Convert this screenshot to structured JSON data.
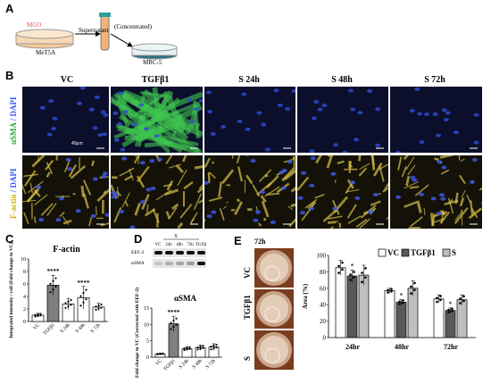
{
  "panels": {
    "A": "A",
    "B": "B",
    "C": "C",
    "D": "D",
    "E": "E"
  },
  "schematic": {
    "mgo": "MGO",
    "met5a": "MeT5A",
    "supernatant": "Supernatant",
    "concentrated": "(Concentrated)",
    "mrc5": "MRC-5"
  },
  "micro": {
    "columns": [
      "VC",
      "TGFβ1",
      "S 24h",
      "S 48h",
      "S 72h"
    ],
    "row_labels": [
      {
        "a": "αSMA",
        "b": " / DAPI"
      },
      {
        "a": "F-actin",
        "b": " / DAPI"
      }
    ],
    "scale": "40μm"
  },
  "chart_data": [
    {
      "panel": "C",
      "type": "bar",
      "title": "F-actin",
      "ylabel": "Integrated intensity / cell (Fold change to VC)",
      "categories": [
        "VC",
        "TGFβ1",
        "S 24h",
        "S 48h",
        "S 72h"
      ],
      "values": [
        1.0,
        5.8,
        2.8,
        3.8,
        2.3
      ],
      "errors": [
        0.3,
        1.6,
        0.9,
        1.8,
        0.6
      ],
      "significance": [
        "",
        "****",
        "",
        "****",
        ""
      ],
      "ylim": [
        0,
        10
      ],
      "yticks": [
        0,
        2,
        4,
        6,
        8,
        10
      ],
      "colors": [
        "#ffffff",
        "#7f7f7f",
        "#ffffff",
        "#ffffff",
        "#ffffff"
      ]
    },
    {
      "panel": "D",
      "type": "bar",
      "title": "αSMA",
      "ylabel": "Fold change to VC (Corrected with EEF-2)",
      "categories": [
        "VC",
        "TGFβ1",
        "S 24h",
        "S 48h",
        "S 72h"
      ],
      "values": [
        1.0,
        10.2,
        2.6,
        2.9,
        3.1
      ],
      "errors": [
        0.2,
        2.3,
        0.6,
        0.8,
        1.0
      ],
      "significance": [
        "",
        "****",
        "",
        "",
        ""
      ],
      "ylim": [
        0,
        15
      ],
      "yticks": [
        0,
        5,
        10,
        15
      ],
      "blot": {
        "group": "S",
        "lanes": [
          "VC",
          "24h",
          "48h",
          "72h",
          "TGFβ"
        ],
        "rows": [
          "EEF-2",
          "αSMA"
        ],
        "asma_intensity": [
          0.15,
          0.25,
          0.3,
          0.35,
          1.0
        ]
      }
    },
    {
      "panel": "E",
      "type": "bar",
      "ylabel": "Area (%)",
      "categories": [
        "24hr",
        "48hr",
        "72hr"
      ],
      "series": [
        {
          "name": "VC",
          "values": [
            85,
            57,
            47
          ],
          "errors": [
            9,
            3,
            5
          ],
          "color": "#ffffff"
        },
        {
          "name": "TGFβ1",
          "values": [
            75,
            43,
            33
          ],
          "errors": [
            7,
            3,
            3
          ],
          "color": "#595959"
        },
        {
          "name": "S",
          "values": [
            76,
            60,
            46
          ],
          "errors": [
            12,
            9,
            6
          ],
          "color": "#bfbfbf"
        }
      ],
      "significance": {
        "TGFβ1": [
          "*",
          "*",
          "*"
        ]
      },
      "ylim": [
        0,
        100
      ],
      "yticks": [
        0,
        20,
        40,
        60,
        80,
        100
      ],
      "legend": "top-right"
    }
  ],
  "wound": {
    "time": "72h",
    "labels": [
      "VC",
      "TGFβ1",
      "S"
    ]
  }
}
